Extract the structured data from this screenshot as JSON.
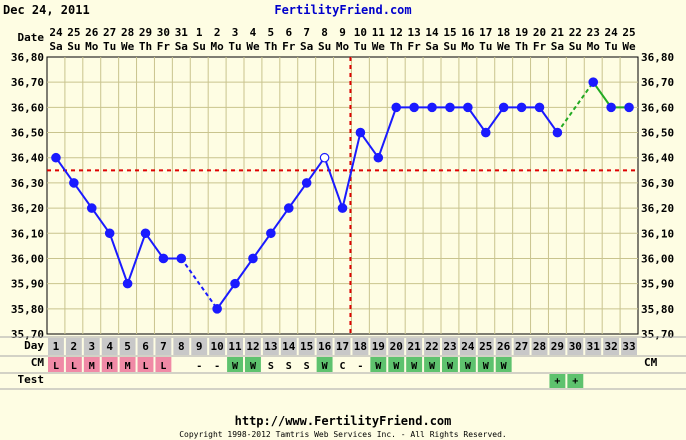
{
  "header": {
    "date_label": "Dec 24, 2011",
    "site_title": "FertilityFriend.com"
  },
  "footer": {
    "url": "http://www.FertilityFriend.com",
    "copyright": "Copyright 1998-2012 Tamtris Web Services Inc. - All Rights Reserved."
  },
  "row_labels": {
    "date": "Date",
    "day": "Day",
    "cm": "CM",
    "test": "Test"
  },
  "colors": {
    "background": "#fefde3",
    "grid": "#c9c48e",
    "temp_line": "#1a1aff",
    "temp_gap_line": "#1a1aff",
    "temp_last_line": "#22aa22",
    "coverline": "#dd0000",
    "ovulation_line": "#dd0000",
    "day_cell": "#c8c8c8",
    "cm_pink": "#f08aa6",
    "cm_green": "#5ec26e",
    "title_blue": "#0000cc"
  },
  "chart_data": {
    "type": "line",
    "title": "",
    "xlabel": "Day",
    "ylabel": "",
    "ylim": [
      35.7,
      36.8
    ],
    "y_ticks": [
      "35,70",
      "35,80",
      "35,90",
      "36,00",
      "36,10",
      "36,20",
      "36,30",
      "36,40",
      "36,50",
      "36,60",
      "36,70",
      "36,80"
    ],
    "grid": true,
    "days": [
      1,
      2,
      3,
      4,
      5,
      6,
      7,
      8,
      9,
      10,
      11,
      12,
      13,
      14,
      15,
      16,
      17,
      18,
      19,
      20,
      21,
      22,
      23,
      24,
      25,
      26,
      27,
      28,
      29,
      30,
      31,
      32,
      33
    ],
    "dates": [
      "24",
      "25",
      "26",
      "27",
      "28",
      "29",
      "30",
      "31",
      "1",
      "2",
      "3",
      "4",
      "5",
      "6",
      "7",
      "8",
      "9",
      "10",
      "11",
      "12",
      "13",
      "14",
      "15",
      "16",
      "17",
      "18",
      "19",
      "20",
      "21",
      "22",
      "23",
      "24",
      "25"
    ],
    "weekdays": [
      "Sa",
      "Su",
      "Mo",
      "Tu",
      "We",
      "Th",
      "Fr",
      "Sa",
      "Su",
      "Mo",
      "Tu",
      "We",
      "Th",
      "Fr",
      "Sa",
      "Su",
      "Mo",
      "Tu",
      "We",
      "Th",
      "Fr",
      "Sa",
      "Su",
      "Mo",
      "Tu",
      "We",
      "Th",
      "Fr",
      "Sa",
      "Su",
      "Mo",
      "Tu",
      "We"
    ],
    "temperatures": [
      36.4,
      36.3,
      36.2,
      36.1,
      35.9,
      36.1,
      36.0,
      36.0,
      null,
      35.8,
      35.9,
      36.0,
      36.1,
      36.2,
      36.3,
      36.4,
      36.2,
      36.5,
      36.4,
      36.6,
      36.6,
      36.6,
      36.6,
      36.6,
      36.5,
      36.6,
      36.6,
      36.6,
      36.5,
      null,
      36.7,
      36.6,
      36.6
    ],
    "open_circle_days": [
      16
    ],
    "dashed_segments": [
      [
        8,
        10
      ],
      [
        29,
        31
      ]
    ],
    "last_segment_from_day": 29,
    "coverline": 36.35,
    "ovulation_day": 17,
    "cervical_mucus": [
      "L",
      "L",
      "M",
      "M",
      "M",
      "L",
      "L",
      "",
      "-",
      "-",
      "W",
      "W",
      "S",
      "S",
      "S",
      "W",
      "C",
      "-",
      "W",
      "W",
      "W",
      "W",
      "W",
      "W",
      "W",
      "W",
      "",
      "",
      "",
      "",
      "",
      "",
      ""
    ],
    "cm_colors": [
      "pink",
      "pink",
      "pink",
      "pink",
      "pink",
      "pink",
      "pink",
      "",
      "",
      "",
      "green",
      "green",
      "",
      "",
      "",
      "green",
      "",
      "",
      "green",
      "green",
      "green",
      "green",
      "green",
      "green",
      "green",
      "green",
      "",
      "",
      "",
      "",
      "",
      "",
      ""
    ],
    "tests": [
      "",
      "",
      "",
      "",
      "",
      "",
      "",
      "",
      "",
      "",
      "",
      "",
      "",
      "",
      "",
      "",
      "",
      "",
      "",
      "",
      "",
      "",
      "",
      "",
      "",
      "",
      "",
      "",
      "+",
      "+",
      "",
      "",
      ""
    ],
    "test_colors": [
      "",
      "",
      "",
      "",
      "",
      "",
      "",
      "",
      "",
      "",
      "",
      "",
      "",
      "",
      "",
      "",
      "",
      "",
      "",
      "",
      "",
      "",
      "",
      "",
      "",
      "",
      "",
      "",
      "green",
      "green",
      "",
      "",
      ""
    ]
  }
}
